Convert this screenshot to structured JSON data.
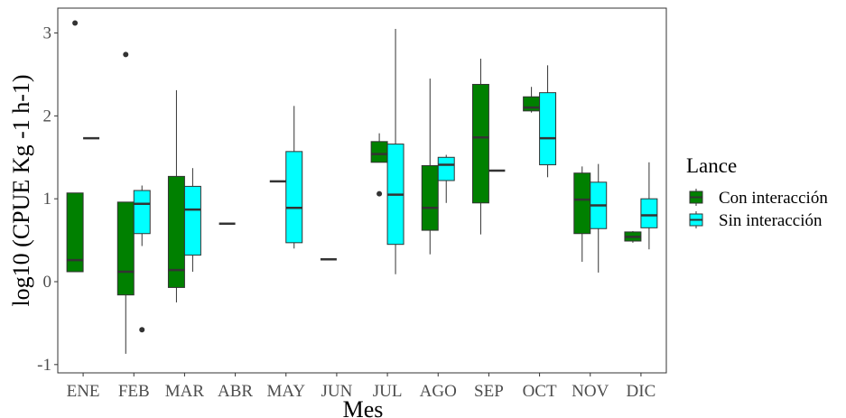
{
  "chart_data": {
    "type": "boxplot",
    "xlabel": "Mes",
    "ylabel": "log10 (CPUE Kg -1  h-1)",
    "ylim": [
      -1.1,
      3.3
    ],
    "yticks": [
      "-1",
      "0",
      "1",
      "2",
      "3"
    ],
    "categories": [
      "ENE",
      "FEB",
      "MAR",
      "ABR",
      "MAY",
      "JUN",
      "JUL",
      "AGO",
      "SEP",
      "OCT",
      "NOV",
      "DIC"
    ],
    "grid": false,
    "legend": {
      "title": "Lance",
      "placement": "right",
      "entries": [
        "Con interacción",
        "Sin interacción"
      ]
    },
    "colors": {
      "con": "#008000",
      "sin": "#00FFFF",
      "line": "#333333",
      "text": "#4d4d4d"
    },
    "series": [
      {
        "name": "Con interacción",
        "boxes": [
          {
            "cat": "ENE",
            "whislo": 0.12,
            "q1": 0.12,
            "med": 0.26,
            "q3": 1.07,
            "whishi": 1.07,
            "outliers": [
              3.12
            ]
          },
          {
            "cat": "FEB",
            "whislo": -0.87,
            "q1": -0.16,
            "med": 0.12,
            "q3": 0.96,
            "whishi": 0.96,
            "outliers": [
              2.74
            ]
          },
          {
            "cat": "MAR",
            "whislo": -0.25,
            "q1": -0.07,
            "med": 0.14,
            "q3": 1.27,
            "whishi": 2.31,
            "outliers": []
          },
          {
            "cat": "ABR",
            "whislo": 0.7,
            "q1": 0.7,
            "med": 0.7,
            "q3": 0.7,
            "whishi": 0.7,
            "outliers": []
          },
          {
            "cat": "MAY",
            "whislo": 1.21,
            "q1": 1.21,
            "med": 1.21,
            "q3": 1.21,
            "whishi": 1.21,
            "outliers": []
          },
          {
            "cat": "JUN",
            "whislo": 0.27,
            "q1": 0.27,
            "med": 0.27,
            "q3": 0.27,
            "whishi": 0.27,
            "outliers": []
          },
          {
            "cat": "JUL",
            "whislo": 1.44,
            "q1": 1.44,
            "med": 1.54,
            "q3": 1.69,
            "whishi": 1.79,
            "outliers": [
              1.06
            ]
          },
          {
            "cat": "AGO",
            "whislo": 0.33,
            "q1": 0.62,
            "med": 0.89,
            "q3": 1.4,
            "whishi": 2.45,
            "outliers": []
          },
          {
            "cat": "SEP",
            "whislo": 0.57,
            "q1": 0.95,
            "med": 1.74,
            "q3": 2.38,
            "whishi": 2.69,
            "outliers": []
          },
          {
            "cat": "OCT",
            "whislo": 2.04,
            "q1": 2.06,
            "med": 2.1,
            "q3": 2.23,
            "whishi": 2.35,
            "outliers": []
          },
          {
            "cat": "NOV",
            "whislo": 0.24,
            "q1": 0.58,
            "med": 0.99,
            "q3": 1.31,
            "whishi": 1.39,
            "outliers": []
          },
          {
            "cat": "DIC",
            "whislo": 0.47,
            "q1": 0.49,
            "med": 0.54,
            "q3": 0.6,
            "whishi": 0.61,
            "outliers": []
          }
        ]
      },
      {
        "name": "Sin interacción",
        "boxes": [
          {
            "cat": "ENE",
            "whislo": 1.73,
            "q1": 1.73,
            "med": 1.73,
            "q3": 1.73,
            "whishi": 1.73,
            "outliers": []
          },
          {
            "cat": "FEB",
            "whislo": 0.43,
            "q1": 0.58,
            "med": 0.94,
            "q3": 1.1,
            "whishi": 1.16,
            "outliers": [
              -0.58
            ]
          },
          {
            "cat": "MAR",
            "whislo": 0.12,
            "q1": 0.32,
            "med": 0.87,
            "q3": 1.15,
            "whishi": 1.37,
            "outliers": []
          },
          {
            "cat": "MAY",
            "whislo": 0.4,
            "q1": 0.47,
            "med": 0.89,
            "q3": 1.57,
            "whishi": 2.12,
            "outliers": []
          },
          {
            "cat": "JUL",
            "whislo": 0.09,
            "q1": 0.45,
            "med": 1.05,
            "q3": 1.66,
            "whishi": 3.05,
            "outliers": []
          },
          {
            "cat": "AGO",
            "whislo": 0.95,
            "q1": 1.22,
            "med": 1.41,
            "q3": 1.5,
            "whishi": 1.53,
            "outliers": []
          },
          {
            "cat": "SEP",
            "whislo": 1.34,
            "q1": 1.34,
            "med": 1.34,
            "q3": 1.34,
            "whishi": 1.34,
            "outliers": []
          },
          {
            "cat": "OCT",
            "whislo": 1.26,
            "q1": 1.41,
            "med": 1.73,
            "q3": 2.28,
            "whishi": 2.61,
            "outliers": []
          },
          {
            "cat": "NOV",
            "whislo": 0.11,
            "q1": 0.64,
            "med": 0.92,
            "q3": 1.2,
            "whishi": 1.42,
            "outliers": []
          },
          {
            "cat": "DIC",
            "whislo": 0.39,
            "q1": 0.65,
            "med": 0.8,
            "q3": 1.0,
            "whishi": 1.44,
            "outliers": []
          }
        ]
      }
    ]
  }
}
